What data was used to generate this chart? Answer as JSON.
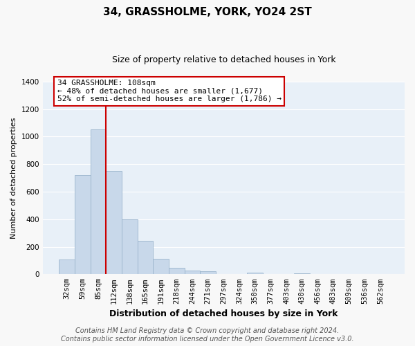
{
  "title": "34, GRASSHOLME, YORK, YO24 2ST",
  "subtitle": "Size of property relative to detached houses in York",
  "xlabel": "Distribution of detached houses by size in York",
  "ylabel": "Number of detached properties",
  "bar_labels": [
    "32sqm",
    "59sqm",
    "85sqm",
    "112sqm",
    "138sqm",
    "165sqm",
    "191sqm",
    "218sqm",
    "244sqm",
    "271sqm",
    "297sqm",
    "324sqm",
    "350sqm",
    "377sqm",
    "403sqm",
    "430sqm",
    "456sqm",
    "483sqm",
    "509sqm",
    "536sqm",
    "562sqm"
  ],
  "bar_values": [
    108,
    720,
    1053,
    748,
    400,
    245,
    110,
    48,
    28,
    22,
    0,
    0,
    10,
    0,
    0,
    8,
    0,
    0,
    0,
    0,
    0
  ],
  "bar_color": "#c8d8ea",
  "bar_edge_color": "#9ab4cc",
  "vline_color": "#cc0000",
  "vline_index": 2.5,
  "ylim": [
    0,
    1400
  ],
  "yticks": [
    0,
    200,
    400,
    600,
    800,
    1000,
    1200,
    1400
  ],
  "annotation_title": "34 GRASSHOLME: 108sqm",
  "annotation_line1": "← 48% of detached houses are smaller (1,677)",
  "annotation_line2": "52% of semi-detached houses are larger (1,786) →",
  "annotation_box_facecolor": "#ffffff",
  "annotation_box_edgecolor": "#cc0000",
  "footer_line1": "Contains HM Land Registry data © Crown copyright and database right 2024.",
  "footer_line2": "Contains public sector information licensed under the Open Government Licence v3.0.",
  "plot_bg_color": "#e8f0f8",
  "fig_bg_color": "#f8f8f8",
  "grid_color": "#ffffff",
  "title_fontsize": 11,
  "subtitle_fontsize": 9,
  "xlabel_fontsize": 9,
  "ylabel_fontsize": 8,
  "tick_fontsize": 7.5,
  "annotation_fontsize": 8,
  "footer_fontsize": 7
}
